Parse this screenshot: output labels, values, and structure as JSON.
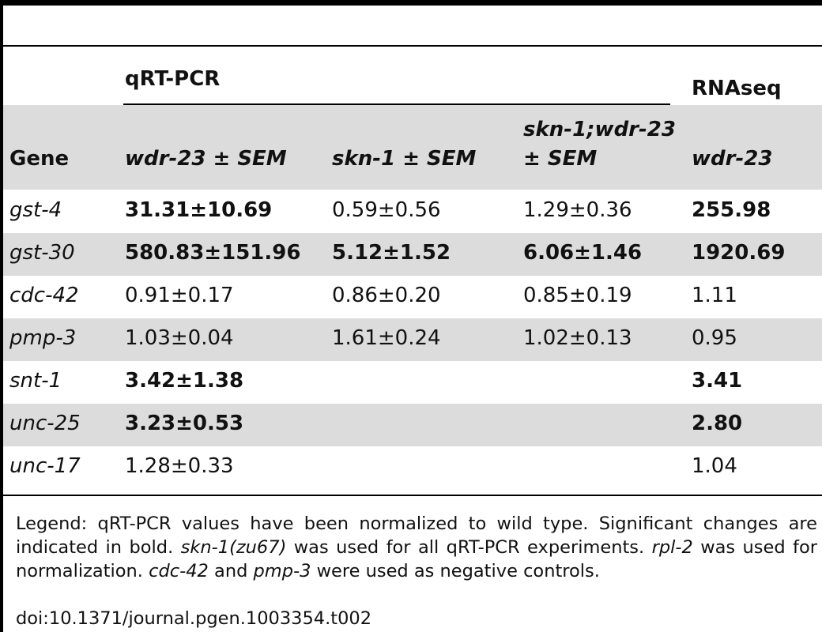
{
  "table": {
    "group_qrtpcr": "qRT-PCR",
    "group_rnaseq": "RNAseq",
    "col_gene": "Gene",
    "col_wdr23": "wdr-23 ± SEM",
    "col_skn1": "skn-1 ± SEM",
    "col_combo_l1": "skn-1;wdr-23",
    "col_combo_l2": "± SEM",
    "col_rnaseq": "wdr-23",
    "rows": [
      {
        "gene": "gst-4",
        "wdr": "31.31±10.69",
        "skn": "0.59±0.56",
        "combo": "1.29±0.36",
        "rna": "255.98",
        "b_wdr": true,
        "b_skn": false,
        "b_combo": false,
        "b_rna": true
      },
      {
        "gene": "gst-30",
        "wdr": "580.83±151.96",
        "skn": "5.12±1.52",
        "combo": "6.06±1.46",
        "rna": "1920.69",
        "b_wdr": true,
        "b_skn": true,
        "b_combo": true,
        "b_rna": true
      },
      {
        "gene": "cdc-42",
        "wdr": "0.91±0.17",
        "skn": "0.86±0.20",
        "combo": "0.85±0.19",
        "rna": "1.11",
        "b_wdr": false,
        "b_skn": false,
        "b_combo": false,
        "b_rna": false
      },
      {
        "gene": "pmp-3",
        "wdr": "1.03±0.04",
        "skn": "1.61±0.24",
        "combo": "1.02±0.13",
        "rna": "0.95",
        "b_wdr": false,
        "b_skn": false,
        "b_combo": false,
        "b_rna": false
      },
      {
        "gene": "snt-1",
        "wdr": "3.42±1.38",
        "skn": "",
        "combo": "",
        "rna": "3.41",
        "b_wdr": true,
        "b_skn": false,
        "b_combo": false,
        "b_rna": true
      },
      {
        "gene": "unc-25",
        "wdr": "3.23±0.53",
        "skn": "",
        "combo": "",
        "rna": "2.80",
        "b_wdr": true,
        "b_skn": false,
        "b_combo": false,
        "b_rna": true
      },
      {
        "gene": "unc-17",
        "wdr": "1.28±0.33",
        "skn": "",
        "combo": "",
        "rna": "1.04",
        "b_wdr": false,
        "b_skn": false,
        "b_combo": false,
        "b_rna": false
      }
    ]
  },
  "legend": {
    "t1": "Legend: qRT-PCR values have been normalized to wild type. Significant changes are indicated in bold. ",
    "i1": "skn-1(zu67)",
    "t2": " was used for all qRT-PCR experiments. ",
    "i2": "rpl-2",
    "t3": " was used for normalization. ",
    "i3": "cdc-42",
    "t4": " and ",
    "i4": "pmp-3",
    "t5": " were used as negative controls.",
    "doi": "doi:10.1371/journal.pgen.1003354.t002"
  }
}
